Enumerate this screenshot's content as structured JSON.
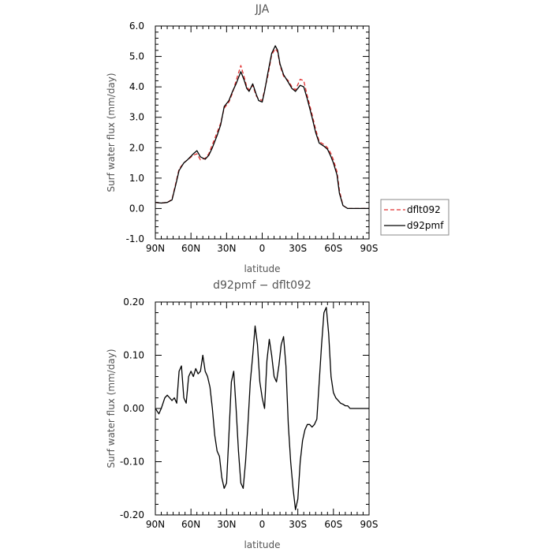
{
  "chart_data": [
    {
      "type": "line",
      "title": "JJA",
      "xlabel": "latitude",
      "ylabel": "Surf water flux (mm/day)",
      "xlim": [
        90,
        -90
      ],
      "ylim": [
        -1.0,
        6.0
      ],
      "x_ticks": [
        "90N",
        "60N",
        "30N",
        "0",
        "30S",
        "60S",
        "90S"
      ],
      "y_ticks": [
        "-1.0",
        "0.0",
        "1.0",
        "2.0",
        "3.0",
        "4.0",
        "5.0",
        "6.0"
      ],
      "legend": {
        "placement": "right",
        "entries": [
          "dflt092",
          "d92pmf"
        ]
      },
      "series": [
        {
          "name": "dflt092",
          "color": "#e03030",
          "style": "dashed",
          "x": [
            90,
            85,
            80,
            76,
            73,
            70,
            66,
            63,
            58,
            55,
            52,
            48,
            45,
            42,
            38,
            35,
            32,
            28,
            25,
            22,
            18,
            15,
            13,
            11,
            8,
            5,
            3,
            0,
            -2,
            -5,
            -8,
            -11,
            -13,
            -15,
            -18,
            -22,
            -25,
            -28,
            -32,
            -35,
            -38,
            -42,
            -45,
            -48,
            -52,
            -55,
            -58,
            -60,
            -63,
            -65,
            -68,
            -70,
            -72,
            -75,
            -80,
            -85,
            -90
          ],
          "y": [
            0.2,
            0.18,
            0.2,
            0.3,
            0.8,
            1.3,
            1.5,
            1.6,
            1.75,
            1.8,
            1.6,
            1.65,
            1.8,
            2.1,
            2.5,
            2.8,
            3.3,
            3.5,
            3.8,
            4.2,
            4.7,
            4.3,
            4.0,
            3.9,
            4.05,
            3.7,
            3.6,
            3.55,
            3.9,
            4.4,
            5.05,
            5.25,
            5.15,
            4.7,
            4.35,
            4.2,
            4.0,
            3.9,
            4.25,
            4.2,
            3.7,
            3.1,
            2.6,
            2.2,
            2.1,
            2.0,
            1.8,
            1.6,
            1.2,
            0.6,
            0.1,
            0.05,
            0.0,
            0.0,
            0.0,
            0.0,
            0.0
          ]
        },
        {
          "name": "d92pmf",
          "color": "#000000",
          "style": "solid",
          "x": [
            90,
            85,
            80,
            76,
            73,
            70,
            66,
            63,
            58,
            55,
            52,
            48,
            45,
            42,
            38,
            35,
            32,
            28,
            25,
            22,
            18,
            15,
            13,
            11,
            8,
            5,
            3,
            0,
            -2,
            -5,
            -8,
            -11,
            -13,
            -15,
            -18,
            -22,
            -25,
            -28,
            -32,
            -35,
            -38,
            -42,
            -45,
            -48,
            -52,
            -55,
            -58,
            -60,
            -63,
            -65,
            -68,
            -70,
            -72,
            -75,
            -80,
            -85,
            -90
          ],
          "y": [
            0.2,
            0.18,
            0.2,
            0.28,
            0.75,
            1.25,
            1.5,
            1.6,
            1.8,
            1.9,
            1.7,
            1.62,
            1.75,
            2.0,
            2.4,
            2.75,
            3.35,
            3.55,
            3.85,
            4.1,
            4.5,
            4.2,
            3.95,
            3.85,
            4.1,
            3.75,
            3.55,
            3.5,
            3.85,
            4.5,
            5.1,
            5.35,
            5.2,
            4.75,
            4.4,
            4.15,
            3.95,
            3.85,
            4.05,
            4.0,
            3.6,
            3.0,
            2.5,
            2.15,
            2.05,
            1.95,
            1.7,
            1.5,
            1.1,
            0.5,
            0.1,
            0.05,
            0.0,
            0.0,
            0.0,
            0.0,
            0.0
          ]
        }
      ]
    },
    {
      "type": "line",
      "title": "d92pmf − dflt092",
      "xlabel": "latitude",
      "ylabel": "Surf water flux (mm/day)",
      "xlim": [
        90,
        -90
      ],
      "ylim": [
        -0.2,
        0.2
      ],
      "x_ticks": [
        "90N",
        "60N",
        "30N",
        "0",
        "30S",
        "60S",
        "90S"
      ],
      "y_ticks": [
        "-0.20",
        "-0.10",
        "0.00",
        "0.10",
        "0.20"
      ],
      "series": [
        {
          "color": "#000000",
          "style": "solid",
          "x": [
            90,
            87,
            85,
            82,
            80,
            78,
            76,
            74,
            72,
            70,
            68,
            66,
            64,
            62,
            60,
            58,
            56,
            54,
            52,
            50,
            48,
            46,
            44,
            42,
            40,
            38,
            36,
            34,
            32,
            30,
            28,
            26,
            24,
            22,
            20,
            18,
            16,
            14,
            12,
            10,
            8,
            6,
            4,
            2,
            0,
            -2,
            -4,
            -6,
            -8,
            -10,
            -12,
            -14,
            -16,
            -18,
            -20,
            -22,
            -24,
            -26,
            -28,
            -30,
            -32,
            -34,
            -36,
            -38,
            -40,
            -42,
            -44,
            -46,
            -48,
            -50,
            -52,
            -54,
            -56,
            -58,
            -60,
            -62,
            -64,
            -66,
            -68,
            -70,
            -72,
            -74,
            -76,
            -78,
            -80,
            -82,
            -84,
            -86,
            -88,
            -90
          ],
          "y": [
            0.0,
            -0.01,
            0.0,
            0.02,
            0.025,
            0.02,
            0.015,
            0.02,
            0.01,
            0.07,
            0.08,
            0.02,
            0.01,
            0.06,
            0.07,
            0.06,
            0.075,
            0.065,
            0.07,
            0.1,
            0.07,
            0.06,
            0.04,
            0.0,
            -0.05,
            -0.08,
            -0.09,
            -0.13,
            -0.15,
            -0.14,
            -0.05,
            0.05,
            0.07,
            0.0,
            -0.08,
            -0.14,
            -0.15,
            -0.1,
            -0.03,
            0.05,
            0.1,
            0.155,
            0.12,
            0.05,
            0.02,
            0.0,
            0.09,
            0.13,
            0.1,
            0.06,
            0.05,
            0.08,
            0.12,
            0.135,
            0.08,
            -0.03,
            -0.1,
            -0.15,
            -0.19,
            -0.17,
            -0.1,
            -0.06,
            -0.04,
            -0.03,
            -0.03,
            -0.035,
            -0.03,
            -0.02,
            0.05,
            0.12,
            0.18,
            0.19,
            0.14,
            0.06,
            0.03,
            0.02,
            0.015,
            0.01,
            0.008,
            0.005,
            0.005,
            0.0,
            0.0,
            0.0,
            0.0,
            0.0,
            0.0,
            0.0,
            0.0,
            0.0
          ]
        }
      ]
    }
  ]
}
